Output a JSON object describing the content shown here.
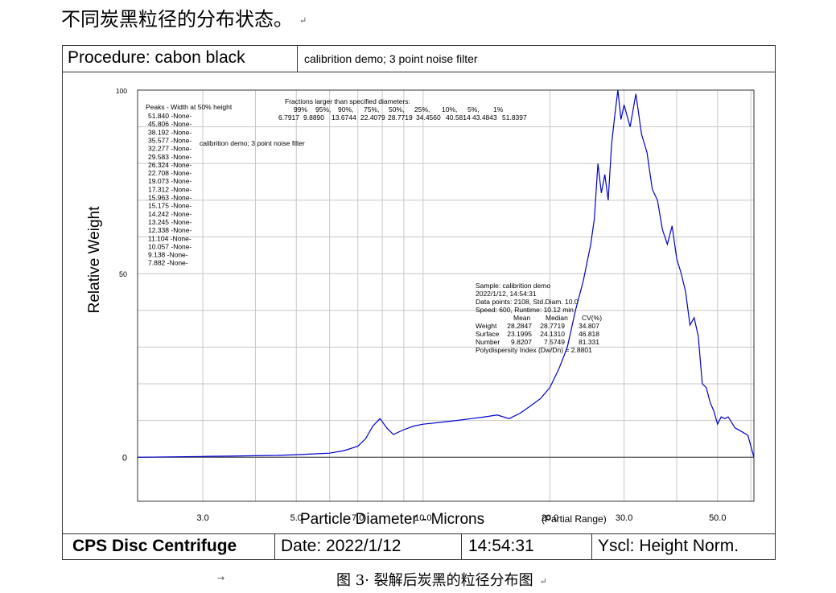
{
  "page": {
    "heading": "不同炭黑粒径的分布状态。",
    "caption": "图 3· 裂解后炭黑的粒径分布图"
  },
  "header": {
    "procedure": "Procedure: cabon black",
    "description": "calibrition demo;  3 point noise filter"
  },
  "footer": {
    "instrument": "CPS Disc Centrifuge",
    "date": "Date: 2022/1/12",
    "time": "14:54:31",
    "yscale": "Yscl: Height Norm."
  },
  "chart_data": {
    "type": "line",
    "xlabel": "Particle Diameter  -  Microns",
    "xlabel_note": "(Partial Range)",
    "ylabel": "Relative Weight",
    "x_scale": "log",
    "xlim": [
      2.1,
      61
    ],
    "ylim": [
      -12,
      100
    ],
    "x_ticks": [
      {
        "value": 3.0,
        "label": "3.0"
      },
      {
        "value": 5.0,
        "label": "5.0"
      },
      {
        "value": 7.0,
        "label": "7.0"
      },
      {
        "value": 10.0,
        "label": "10.0"
      },
      {
        "value": 20.0,
        "label": "20.0"
      },
      {
        "value": 30.0,
        "label": "30.0"
      },
      {
        "value": 50.0,
        "label": "50.0"
      }
    ],
    "y_ticks": [
      {
        "value": 100,
        "label": "100"
      },
      {
        "value": 50,
        "label": "50"
      },
      {
        "value": 0,
        "label": "0"
      }
    ],
    "grid": true,
    "series": [
      {
        "color": "#0000cc",
        "points": [
          [
            2.1,
            0
          ],
          [
            2.5,
            0.1
          ],
          [
            3.0,
            0.2
          ],
          [
            3.5,
            0.3
          ],
          [
            4.0,
            0.4
          ],
          [
            4.5,
            0.5
          ],
          [
            5.0,
            0.7
          ],
          [
            5.5,
            0.9
          ],
          [
            6.0,
            1.1
          ],
          [
            6.5,
            1.8
          ],
          [
            7.0,
            3.0
          ],
          [
            7.3,
            5.0
          ],
          [
            7.6,
            8.5
          ],
          [
            7.9,
            10.5
          ],
          [
            8.2,
            8.0
          ],
          [
            8.5,
            6.2
          ],
          [
            9.0,
            7.5
          ],
          [
            9.5,
            8.5
          ],
          [
            10.0,
            9.0
          ],
          [
            11.0,
            9.5
          ],
          [
            12.0,
            10.0
          ],
          [
            13.0,
            10.5
          ],
          [
            14.0,
            11.0
          ],
          [
            15.0,
            11.5
          ],
          [
            16.0,
            10.5
          ],
          [
            17.0,
            12.0
          ],
          [
            18.0,
            14.0
          ],
          [
            19.0,
            16.0
          ],
          [
            20.0,
            19.0
          ],
          [
            21.0,
            24.0
          ],
          [
            22.0,
            30.0
          ],
          [
            23.0,
            40.0
          ],
          [
            24.0,
            48.0
          ],
          [
            25.0,
            58.0
          ],
          [
            25.5,
            65.0
          ],
          [
            26.0,
            80.0
          ],
          [
            26.5,
            72.0
          ],
          [
            27.0,
            77.0
          ],
          [
            27.5,
            70.0
          ],
          [
            28.0,
            85.0
          ],
          [
            28.5,
            93.0
          ],
          [
            29.0,
            100.0
          ],
          [
            29.5,
            92.0
          ],
          [
            30.0,
            96.0
          ],
          [
            31.0,
            90.0
          ],
          [
            32.0,
            99.0
          ],
          [
            33.0,
            88.0
          ],
          [
            34.0,
            83.0
          ],
          [
            35.0,
            73.0
          ],
          [
            36.0,
            70.0
          ],
          [
            37.0,
            62.0
          ],
          [
            38.0,
            58.0
          ],
          [
            39.0,
            63.0
          ],
          [
            40.0,
            54.0
          ],
          [
            41.0,
            50.0
          ],
          [
            42.0,
            45.0
          ],
          [
            43.0,
            36.0
          ],
          [
            44.0,
            38.0
          ],
          [
            45.0,
            33.0
          ],
          [
            46.0,
            20.0
          ],
          [
            47.0,
            19.0
          ],
          [
            48.0,
            15.0
          ],
          [
            49.0,
            12.5
          ],
          [
            50.0,
            9.0
          ],
          [
            51.0,
            11.0
          ],
          [
            52.0,
            10.5
          ],
          [
            53.0,
            11.0
          ],
          [
            55.0,
            8.0
          ],
          [
            57.0,
            7.0
          ],
          [
            59.0,
            6.0
          ],
          [
            61.0,
            0.0
          ]
        ]
      }
    ],
    "annotations": {
      "peaks_title": "Peaks  -  Width at 50% height",
      "peaks": [
        "51.840 -None-",
        "45.806 -None-",
        "38.192 -None-",
        "35.577 -None-",
        "32.277 -None-",
        "29.583 -None-",
        "26.324 -None-",
        "22.708 -None-",
        "19.073 -None-",
        "17.312 -None-",
        "15.963 -None-",
        "15.175 -None-",
        "14.242 -None-",
        "13.245 -None-",
        "12.338 -None-",
        "11.104 -None-",
        "10.057 -None-",
        "9.138 -None-",
        "7.882 -None-"
      ],
      "inner_label": "calibrition demo;  3 point noise filter",
      "fractions_title": "Fractions larger than specified diameters:",
      "fractions_pct": [
        "99%",
        "95%,",
        "90%,",
        "75%,",
        "50%,",
        "25%,",
        "10%,",
        "5%,",
        "1%"
      ],
      "fractions_vals": [
        "6.7917",
        "9.8890",
        "13.6744",
        "22.4079",
        "28.7719",
        "34.4560",
        "40.5814",
        "43.4843",
        "51.8397"
      ],
      "sample_lines": [
        "Sample: calibrition demo",
        "2022/1/12,  14:54:31",
        "Data points: 2108,  Std.Diam. 10.0",
        "Speed: 600,  Runtime: 10.12 min"
      ],
      "stats_header": [
        "Mean",
        "Median",
        "CV(%)"
      ],
      "stats": [
        {
          "name": "Weight",
          "mean": "28.2847",
          "median": "28.7719",
          "cv": "34.807"
        },
        {
          "name": "Surface",
          "mean": "23.1995",
          "median": "24.1310",
          "cv": "46.818"
        },
        {
          "name": "Number",
          "mean": "9.8207",
          "median": "7.5749",
          "cv": "81.331"
        }
      ],
      "pdi": "Polydispersity Index (Dw/Dn) = 2.8801"
    }
  }
}
